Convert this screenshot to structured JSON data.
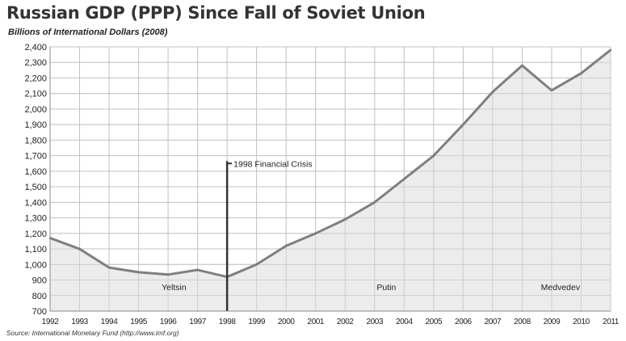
{
  "header": {
    "title": "Russian GDP (PPP) Since Fall of Soviet Union",
    "subtitle": "Billions of International Dollars (2008)"
  },
  "footer": {
    "source": "Source: International Monetary Fund (http://www.imf.org)"
  },
  "chart_data": {
    "type": "area",
    "title": "Russian GDP (PPP) Since Fall of Soviet Union",
    "subtitle": "Billions of International Dollars (2008)",
    "xlabel": "",
    "ylabel": "",
    "x": [
      "1992",
      "1993",
      "1994",
      "1995",
      "1996",
      "1997",
      "1998",
      "1999",
      "2000",
      "2001",
      "2002",
      "2003",
      "2004",
      "2005",
      "2006",
      "2007",
      "2008",
      "2009",
      "2010",
      "2011"
    ],
    "series": [
      {
        "values": [
          1170,
          1100,
          980,
          950,
          935,
          965,
          920,
          1000,
          1120,
          1200,
          1290,
          1400,
          1550,
          1700,
          1900,
          2110,
          2280,
          2120,
          2230,
          2380
        ]
      }
    ],
    "ylim": [
      700,
      2400
    ],
    "yticks": [
      700,
      800,
      900,
      1000,
      1100,
      1200,
      1300,
      1400,
      1500,
      1600,
      1700,
      1800,
      1900,
      2000,
      2100,
      2200,
      2300,
      2400
    ],
    "ytick_labels": [
      "700",
      "800",
      "900",
      "1,000",
      "1,100",
      "1,200",
      "1,300",
      "1,400",
      "1,500",
      "1,600",
      "1,700",
      "1,800",
      "1,900",
      "2,000",
      "2,100",
      "2,200",
      "2,300",
      "2,400"
    ],
    "grid": true,
    "colors": {
      "line": "#7f7f7f",
      "fill": "#e6e6e6",
      "grid": "#c8c8c8",
      "marker": "#333333"
    },
    "marker": {
      "x": "1998",
      "label": "1998 Financial Crisis"
    },
    "annotations": [
      {
        "text": "Yeltsin",
        "x": "1996.2",
        "y": 855
      },
      {
        "text": "Putin",
        "x": "2003.4",
        "y": 855
      },
      {
        "text": "Medvedev",
        "x": "2009.3",
        "y": 855
      }
    ]
  }
}
